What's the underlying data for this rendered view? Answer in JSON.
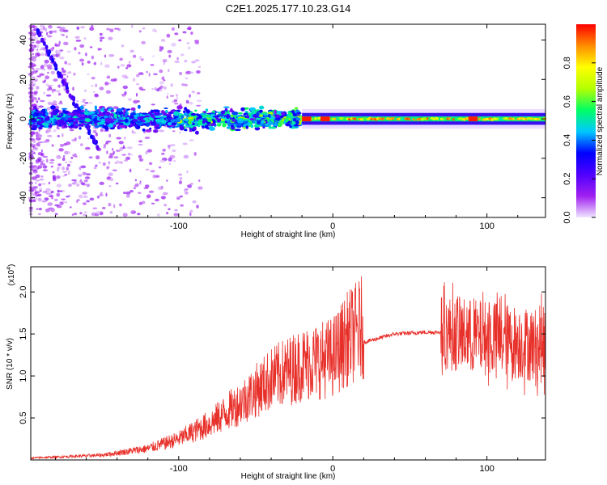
{
  "title": "C2E1.2025.177.10.23.G14",
  "chart_data": [
    {
      "type": "heatmap",
      "xlabel": "Height of straight line (km)",
      "ylabel": "Frequency (Hz)",
      "xlim": [
        -196,
        138
      ],
      "ylim": [
        -50,
        48
      ],
      "x_ticks": [
        "-100",
        "0",
        "100"
      ],
      "y_ticks": [
        "-40",
        "-20",
        "0",
        "20",
        "40"
      ],
      "colorbar": {
        "label": "Normalized spectral amplitude",
        "range": [
          0,
          1
        ],
        "ticks": [
          "0.0",
          "0.2",
          "0.4",
          "0.6",
          "0.8"
        ],
        "colors": [
          "#f0e6ff",
          "#a020f0",
          "#5000ff",
          "#0000ff",
          "#00c8ff",
          "#00ff64",
          "#b4ff00",
          "#ffff00",
          "#ff8c00",
          "#ff0000"
        ]
      },
      "ridge": {
        "frequency_hz": 0,
        "onset_km": -20
      }
    },
    {
      "type": "line",
      "xlabel": "Height of straight line (km)",
      "ylabel": "SNR (10 * v/v)",
      "y_scale_label": "(x10",
      "y_scale_exp": "4",
      "xlim": [
        -196,
        138
      ],
      "ylim": [
        0,
        2.3
      ],
      "x_ticks": [
        "-100",
        "0",
        "100"
      ],
      "y_ticks": [
        "0.5",
        "1.0",
        "1.5",
        "2.0"
      ],
      "color": "#e8302a",
      "envelope": [
        [
          -196,
          0.02
        ],
        [
          -150,
          0.05
        ],
        [
          -120,
          0.12
        ],
        [
          -100,
          0.22
        ],
        [
          -80,
          0.38
        ],
        [
          -60,
          0.6
        ],
        [
          -40,
          0.85
        ],
        [
          -20,
          1.0
        ],
        [
          0,
          1.08
        ],
        [
          10,
          1.28
        ],
        [
          20,
          1.4
        ],
        [
          40,
          1.5
        ],
        [
          60,
          1.52
        ],
        [
          70,
          1.52
        ],
        [
          80,
          1.5
        ],
        [
          100,
          1.45
        ],
        [
          120,
          1.4
        ],
        [
          138,
          1.35
        ]
      ]
    }
  ]
}
